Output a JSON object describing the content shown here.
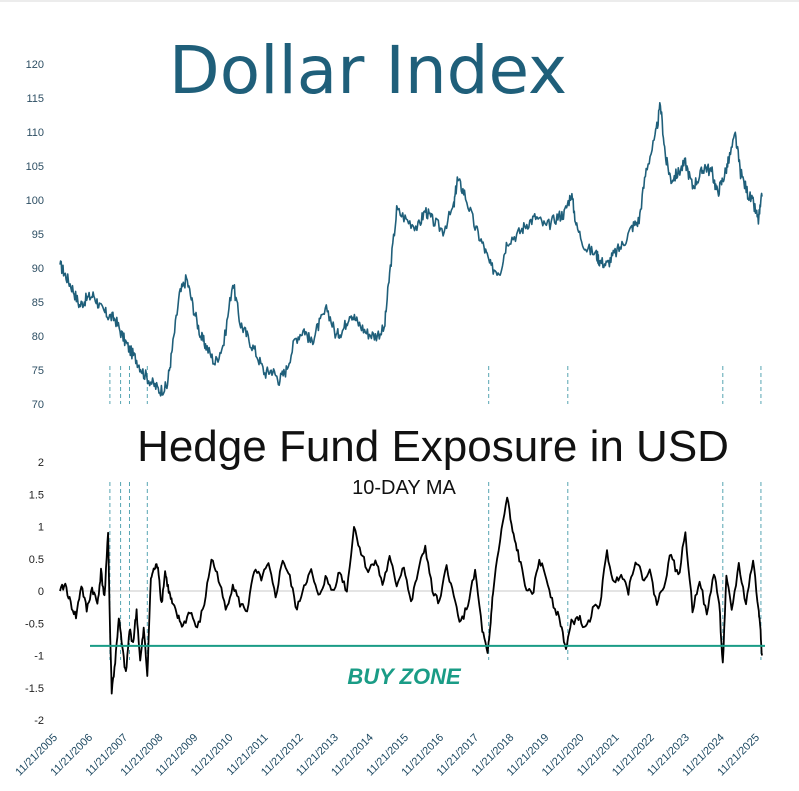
{
  "charts": {
    "top_title": "Dollar Index",
    "bottom_title": "Hedge Fund Exposure in USD",
    "bottom_subtitle": "10-DAY MA",
    "buy_zone_label": "BUY ZONE"
  },
  "colors": {
    "dollar_line": "#1f5f7a",
    "exposure_line": "#000000",
    "buy_zone_line": "#1a9c86",
    "marker_lines": "#2e8fa0",
    "zero_line": "#c8c8c8"
  },
  "chart_data": [
    {
      "type": "line",
      "title": "Dollar Index",
      "ylim": [
        70,
        120
      ],
      "yticks": [
        "70",
        "75",
        "80",
        "85",
        "90",
        "95",
        "100",
        "105",
        "110",
        "115",
        "120"
      ],
      "grid": false,
      "series": [
        {
          "x": [
            2005.85,
            2006.0,
            2006.2,
            2006.4,
            2006.6,
            2006.8,
            2007.0,
            2007.2,
            2007.4,
            2007.6,
            2007.8,
            2008.0,
            2008.2,
            2008.45,
            2008.65,
            2008.85,
            2009.0,
            2009.2,
            2009.4,
            2009.6,
            2009.8,
            2009.95,
            2010.2,
            2010.45,
            2010.7,
            2010.9,
            2011.1,
            2011.35,
            2011.6,
            2011.8,
            2012.0,
            2012.2,
            2012.45,
            2012.7,
            2012.9,
            2013.1,
            2013.35,
            2013.6,
            2013.8,
            2014.0,
            2014.2,
            2014.45,
            2014.7,
            2014.95,
            2015.1,
            2015.3,
            2015.6,
            2015.9,
            2016.1,
            2016.3,
            2016.6,
            2016.9,
            2017.0,
            2017.2,
            2017.5,
            2017.75,
            2017.95,
            2018.2,
            2018.4,
            2018.7,
            2018.95,
            2019.2,
            2019.5,
            2019.8,
            2020.0,
            2020.2,
            2020.35,
            2020.6,
            2020.9,
            2021.0,
            2021.2,
            2021.4,
            2021.65,
            2021.9,
            2022.1,
            2022.3,
            2022.55,
            2022.7,
            2022.85,
            2023.0,
            2023.2,
            2023.4,
            2023.6,
            2023.8,
            2023.95,
            2024.15,
            2024.3,
            2024.45,
            2024.6,
            2024.8,
            2024.95,
            2025.15,
            2025.3,
            2025.45,
            2025.55
          ],
          "y": [
            90.5,
            89.0,
            87.0,
            84.5,
            85.5,
            86.0,
            84.0,
            83.0,
            82.5,
            80.0,
            78.0,
            76.5,
            74.5,
            73.0,
            72.0,
            72.5,
            78.0,
            86.0,
            88.5,
            84.0,
            80.0,
            78.5,
            76.0,
            79.0,
            88.0,
            82.0,
            80.0,
            77.5,
            74.5,
            75.0,
            73.5,
            75.0,
            79.5,
            81.0,
            79.0,
            81.5,
            84.0,
            80.0,
            81.0,
            83.5,
            82.0,
            80.5,
            80.0,
            81.0,
            89.0,
            98.5,
            97.0,
            96.0,
            98.5,
            97.0,
            95.5,
            99.0,
            103.0,
            101.0,
            96.0,
            93.0,
            90.0,
            89.5,
            94.0,
            95.0,
            96.5,
            97.5,
            96.0,
            97.5,
            98.0,
            101.0,
            96.0,
            93.0,
            92.0,
            91.0,
            90.5,
            92.0,
            93.5,
            96.0,
            97.0,
            104.5,
            109.0,
            114.0,
            106.0,
            103.0,
            104.0,
            105.5,
            102.0,
            103.5,
            105.0,
            104.0,
            101.0,
            103.0,
            105.5,
            109.5,
            104.0,
            101.0,
            99.5,
            97.0,
            100.5
          ]
        }
      ]
    },
    {
      "type": "line",
      "title": "Hedge Fund Exposure in USD",
      "subtitle": "10-DAY MA",
      "ylim": [
        -2,
        2
      ],
      "yticks": [
        "-2",
        "-1.5",
        "-1",
        "-0.5",
        "0",
        "0.5",
        "1",
        "1.5",
        "2"
      ],
      "buy_zone": -0.85,
      "xlabels": [
        "11/21/2005",
        "11/21/2006",
        "11/21/2007",
        "11/21/2008",
        "11/21/2009",
        "11/21/2010",
        "11/21/2011",
        "11/21/2012",
        "11/21/2013",
        "11/21/2014",
        "11/21/2015",
        "11/21/2016",
        "11/21/2017",
        "11/21/2018",
        "11/21/2019",
        "11/21/2020",
        "11/21/2021",
        "11/21/2022",
        "11/21/2023",
        "11/21/2024",
        "11/21/2025"
      ],
      "series": [
        {
          "x": [
            2005.85,
            2006.0,
            2006.15,
            2006.3,
            2006.45,
            2006.6,
            2006.75,
            2006.9,
            2007.0,
            2007.1,
            2007.2,
            2007.25,
            2007.3,
            2007.4,
            2007.5,
            2007.6,
            2007.7,
            2007.8,
            2007.9,
            2008.0,
            2008.1,
            2008.2,
            2008.3,
            2008.4,
            2008.5,
            2008.6,
            2008.7,
            2008.8,
            2008.9,
            2009.0,
            2009.15,
            2009.3,
            2009.5,
            2009.7,
            2009.9,
            2010.1,
            2010.3,
            2010.5,
            2010.7,
            2010.9,
            2011.1,
            2011.3,
            2011.5,
            2011.7,
            2011.9,
            2012.1,
            2012.3,
            2012.5,
            2012.7,
            2012.9,
            2013.1,
            2013.3,
            2013.5,
            2013.7,
            2013.9,
            2014.1,
            2014.3,
            2014.5,
            2014.7,
            2014.9,
            2015.1,
            2015.3,
            2015.5,
            2015.7,
            2015.9,
            2016.1,
            2016.3,
            2016.5,
            2016.7,
            2016.9,
            2017.1,
            2017.3,
            2017.5,
            2017.7,
            2017.85,
            2017.92,
            2018.0,
            2018.2,
            2018.4,
            2018.55,
            2018.7,
            2018.9,
            2019.1,
            2019.3,
            2019.5,
            2019.7,
            2019.9,
            2020.05,
            2020.2,
            2020.4,
            2020.6,
            2020.8,
            2021.0,
            2021.2,
            2021.4,
            2021.6,
            2021.8,
            2022.0,
            2022.2,
            2022.4,
            2022.6,
            2022.8,
            2023.0,
            2023.2,
            2023.4,
            2023.6,
            2023.8,
            2024.0,
            2024.2,
            2024.35,
            2024.45,
            2024.55,
            2024.7,
            2024.9,
            2025.1,
            2025.3,
            2025.45,
            2025.5,
            2025.55
          ],
          "y": [
            0.0,
            0.1,
            -0.2,
            -0.4,
            0.1,
            -0.3,
            0.05,
            -0.2,
            0.3,
            -0.1,
            0.9,
            -0.5,
            -1.55,
            -1.1,
            -0.4,
            -0.9,
            -1.3,
            -0.6,
            -0.8,
            -0.3,
            -1.1,
            -0.6,
            -1.3,
            0.2,
            0.35,
            0.4,
            -0.2,
            0.3,
            0.0,
            -0.2,
            -0.4,
            -0.55,
            -0.3,
            -0.6,
            -0.2,
            0.5,
            0.2,
            -0.3,
            0.1,
            -0.2,
            -0.3,
            0.3,
            0.2,
            0.4,
            -0.1,
            0.5,
            0.2,
            -0.3,
            0.1,
            0.3,
            -0.1,
            0.2,
            0.0,
            0.3,
            0.0,
            1.0,
            0.6,
            0.3,
            0.5,
            0.1,
            0.5,
            0.1,
            0.4,
            -0.2,
            0.3,
            0.7,
            0.0,
            -0.2,
            0.4,
            -0.1,
            -0.5,
            -0.2,
            0.3,
            -0.6,
            -1.0,
            -0.6,
            0.0,
            0.8,
            1.45,
            0.9,
            0.6,
            0.1,
            -0.1,
            0.5,
            0.2,
            -0.2,
            -0.5,
            -0.9,
            -0.5,
            -0.4,
            -0.6,
            -0.3,
            -0.2,
            0.6,
            0.1,
            0.3,
            0.0,
            0.5,
            0.2,
            0.3,
            -0.2,
            0.1,
            0.6,
            0.2,
            0.9,
            -0.3,
            0.2,
            -0.4,
            0.3,
            -0.2,
            -1.15,
            0.2,
            -0.3,
            0.4,
            -0.2,
            0.5,
            -0.3,
            -0.5,
            -1.0
          ]
        }
      ]
    }
  ]
}
